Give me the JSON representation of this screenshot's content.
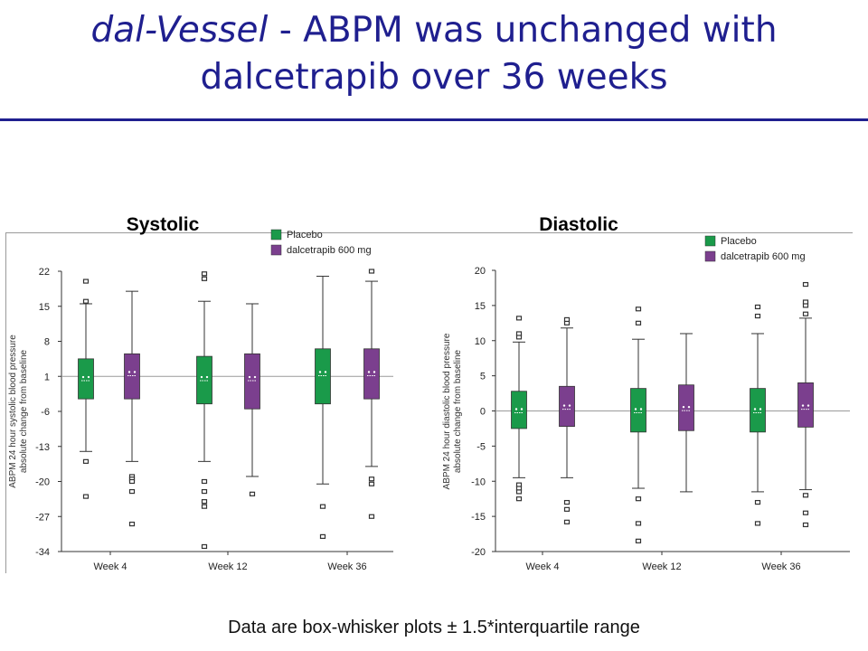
{
  "slide": {
    "title_italic": "dal-Vessel",
    "title_rest": " - ABPM was unchanged with",
    "title_line2": "dalcetrapib over 36 weeks",
    "footnote": "Data are box-whisker plots ± 1.5*interquartile range"
  },
  "colors": {
    "title": "#1f1f8f",
    "placebo": "#1a9a4a",
    "dalcetrapib": "#7b3f8e"
  },
  "chart_data": [
    {
      "type": "box",
      "title": "Systolic",
      "ylabel": "ABPM 24 hour systolic blood pressure absolute change from baseline",
      "ylabel_lines": [
        "ABPM 24 hour systolic blood pressure",
        "absolute change from baseline"
      ],
      "ylim": [
        -34,
        22
      ],
      "yticks": [
        22,
        15,
        8,
        1,
        -6,
        -13,
        -20,
        -27,
        -34
      ],
      "reference_line": 1,
      "categories": [
        "Week 4",
        "Week 12",
        "Week 36"
      ],
      "legend": [
        "Placebo",
        "dalcetrapib 600 mg"
      ],
      "series": [
        {
          "name": "Placebo",
          "boxes": [
            {
              "q1": -3.5,
              "median": 0.5,
              "q3": 4.5,
              "whisker_low": -14,
              "whisker_high": 15.5,
              "outliers": [
                16,
                20,
                -16,
                -23
              ]
            },
            {
              "q1": -4.5,
              "median": 0.5,
              "q3": 5.0,
              "whisker_low": -16,
              "whisker_high": 16,
              "outliers": [
                20.5,
                21.5,
                -20,
                -22,
                -24,
                -25,
                -33
              ]
            },
            {
              "q1": -4.5,
              "median": 1.5,
              "q3": 6.5,
              "whisker_low": -20.5,
              "whisker_high": 21,
              "outliers": [
                -25,
                -31
              ]
            }
          ]
        },
        {
          "name": "dalcetrapib 600 mg",
          "boxes": [
            {
              "q1": -3.5,
              "median": 1.5,
              "q3": 5.5,
              "whisker_low": -16,
              "whisker_high": 18,
              "outliers": [
                -19,
                -19.5,
                -20,
                -22,
                -28.5
              ]
            },
            {
              "q1": -5.5,
              "median": 0.5,
              "q3": 5.5,
              "whisker_low": -19,
              "whisker_high": 15.5,
              "outliers": [
                -22.5
              ]
            },
            {
              "q1": -3.5,
              "median": 1.5,
              "q3": 6.5,
              "whisker_low": -17,
              "whisker_high": 20,
              "outliers": [
                22,
                -19.5,
                -20.5,
                -27
              ]
            }
          ]
        }
      ]
    },
    {
      "type": "box",
      "title": "Diastolic",
      "ylabel": "ABPM 24 hour diastolic blood pressure absolute change from baseline",
      "ylabel_lines": [
        "ABPM 24 hour diastolic blood pressure",
        "absolute change from baseline"
      ],
      "ylim": [
        -20,
        20
      ],
      "yticks": [
        20,
        15,
        10,
        5,
        0,
        -5,
        -10,
        -15,
        -20
      ],
      "reference_line": 0,
      "categories": [
        "Week 4",
        "Week 12",
        "Week 36"
      ],
      "legend": [
        "Placebo",
        "dalcetrapib 600 mg"
      ],
      "series": [
        {
          "name": "Placebo",
          "boxes": [
            {
              "q1": -2.5,
              "median": 0,
              "q3": 2.8,
              "whisker_low": -9.5,
              "whisker_high": 9.8,
              "outliers": [
                10.5,
                11,
                13.2,
                -10.5,
                -11,
                -11.5,
                -12.5
              ]
            },
            {
              "q1": -3,
              "median": 0,
              "q3": 3.2,
              "whisker_low": -11,
              "whisker_high": 10.2,
              "outliers": [
                12.5,
                14.5,
                -12.5,
                -16,
                -18.5
              ]
            },
            {
              "q1": -3,
              "median": 0,
              "q3": 3.2,
              "whisker_low": -11.5,
              "whisker_high": 11,
              "outliers": [
                13.5,
                14.8,
                -13,
                -16
              ]
            }
          ]
        },
        {
          "name": "dalcetrapib 600 mg",
          "boxes": [
            {
              "q1": -2.2,
              "median": 0.5,
              "q3": 3.5,
              "whisker_low": -9.5,
              "whisker_high": 11.8,
              "outliers": [
                12.5,
                13,
                -13,
                -14,
                -15.8
              ]
            },
            {
              "q1": -2.8,
              "median": 0.3,
              "q3": 3.7,
              "whisker_low": -11.5,
              "whisker_high": 11,
              "outliers": []
            },
            {
              "q1": -2.3,
              "median": 0.5,
              "q3": 4,
              "whisker_low": -11.2,
              "whisker_high": 13.2,
              "outliers": [
                13.8,
                15,
                15.5,
                18,
                -12,
                -14.5,
                -16.2
              ]
            }
          ]
        }
      ]
    }
  ]
}
